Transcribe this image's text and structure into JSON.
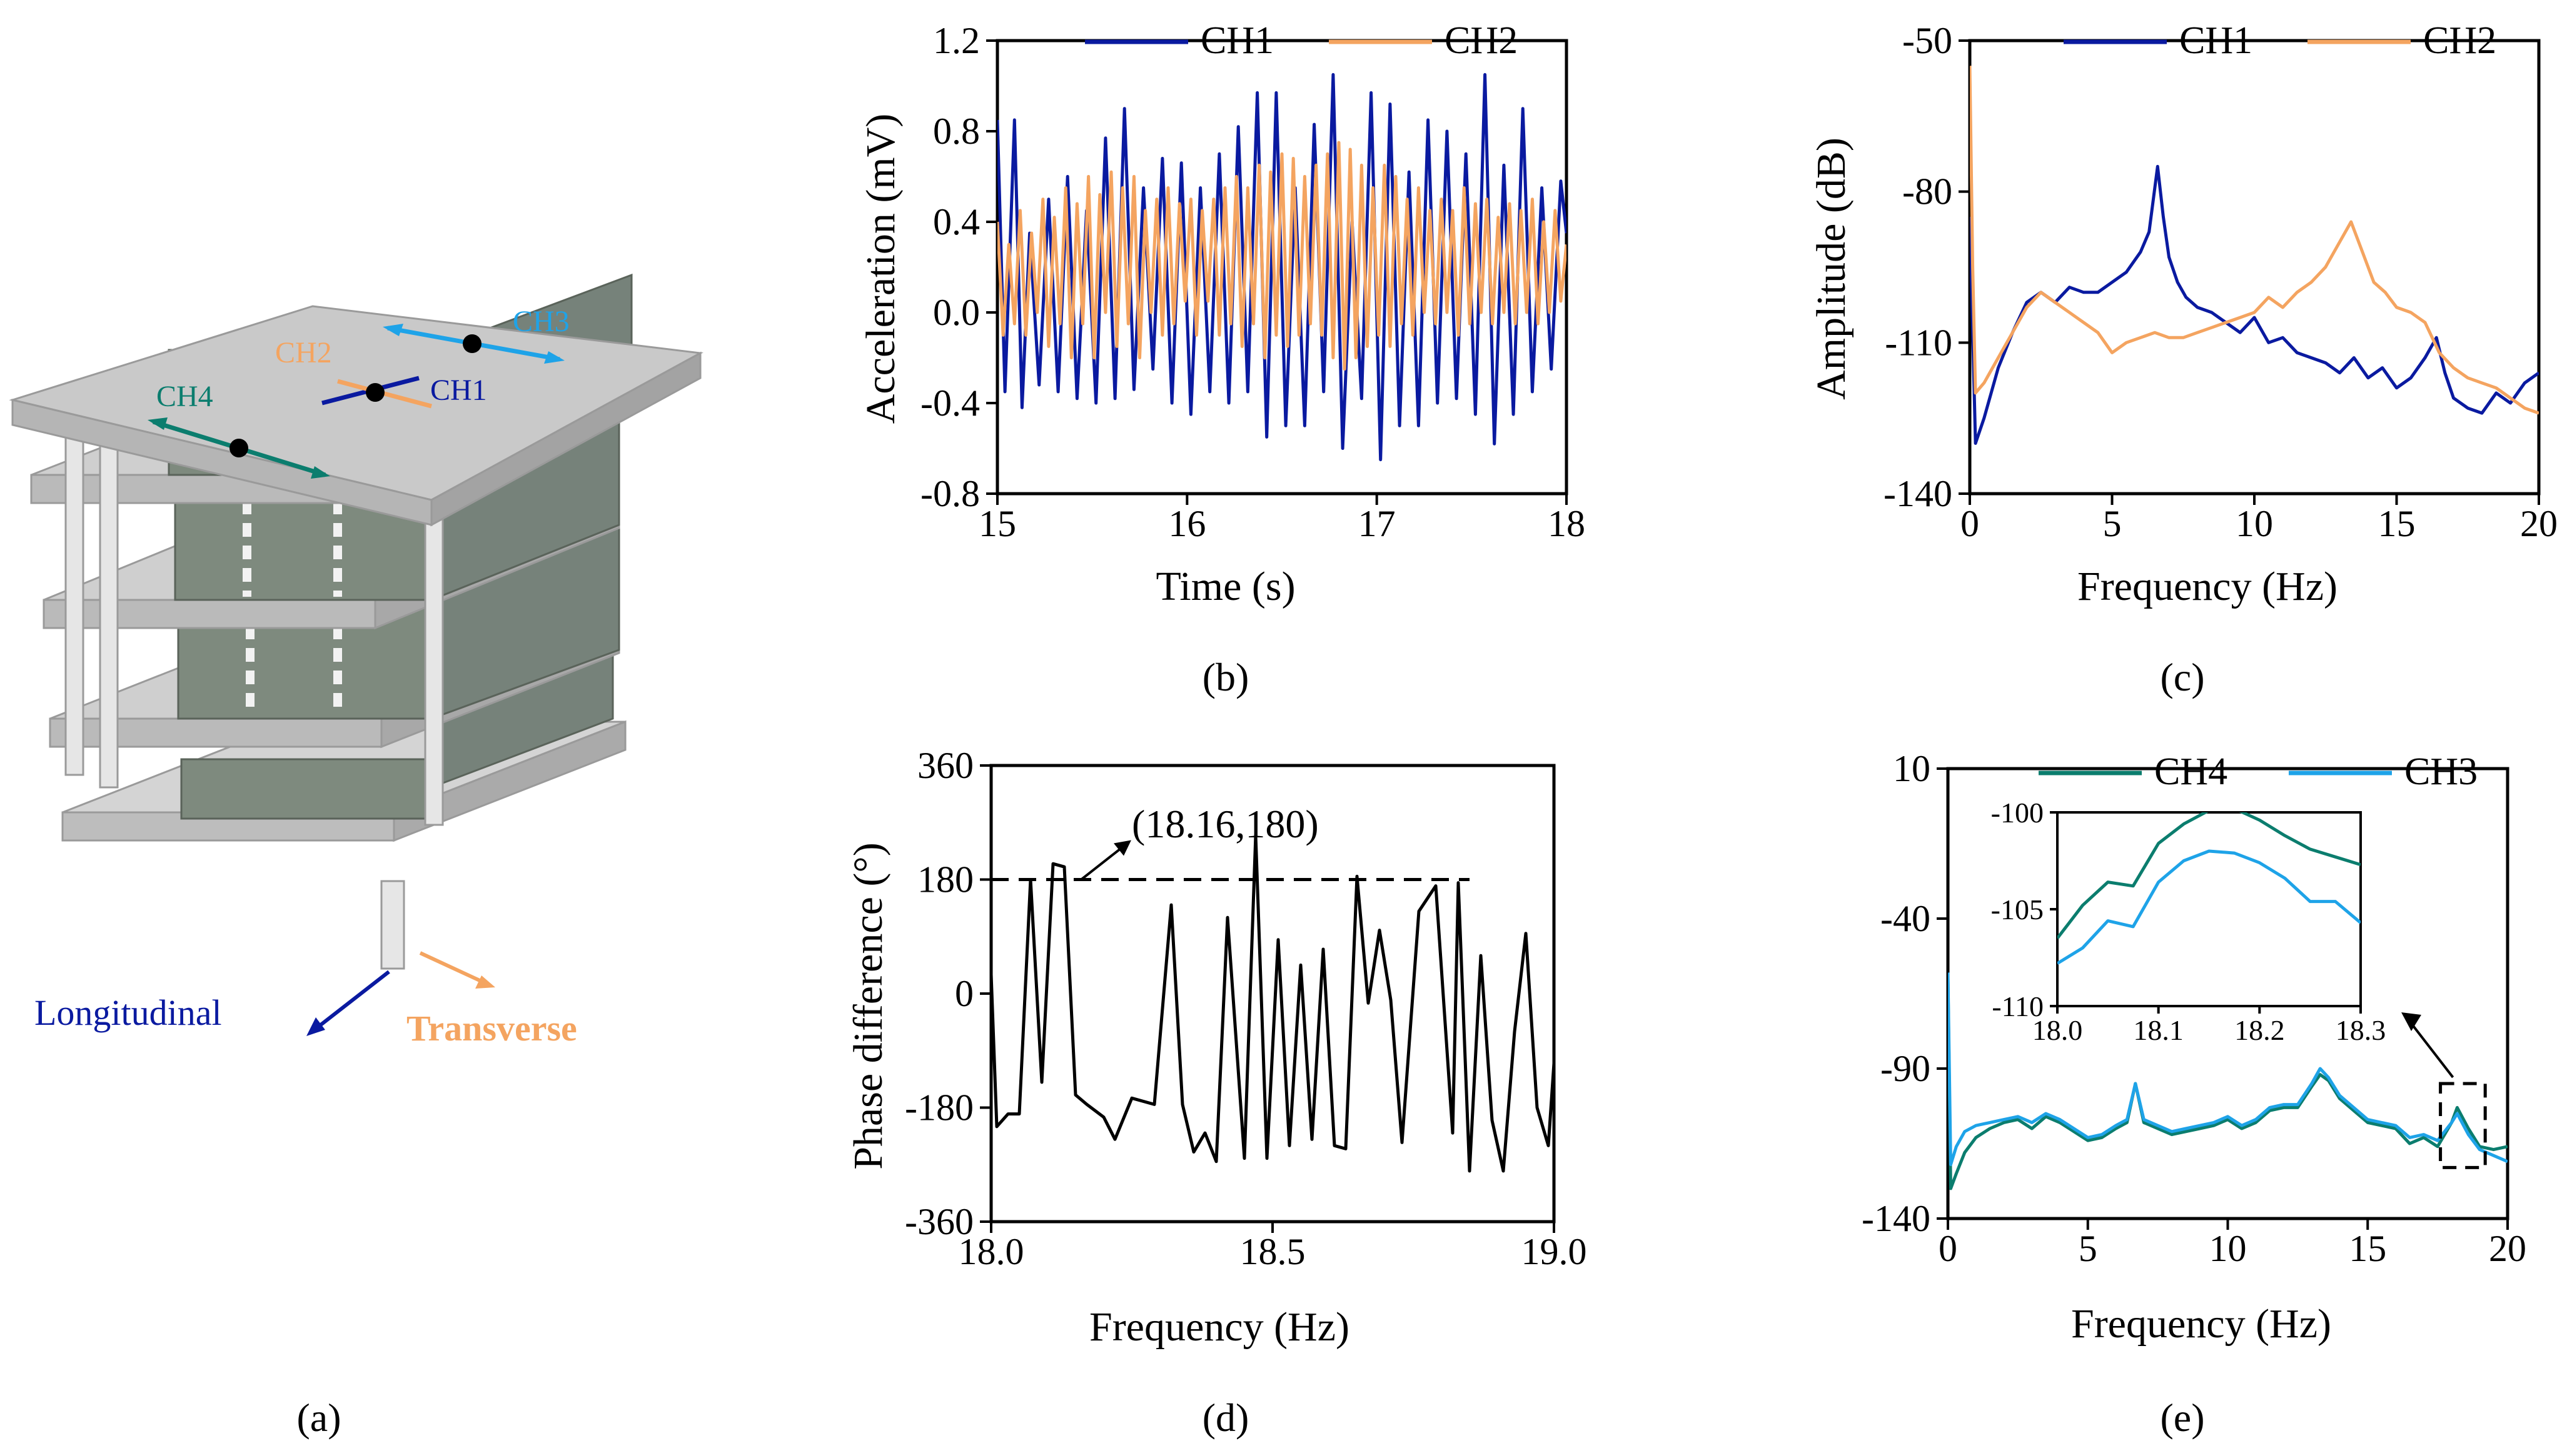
{
  "colors": {
    "ch1": "#0a1aa0",
    "ch2": "#f4a460",
    "ch3": "#1ea3e8",
    "ch4": "#0b7d6e",
    "longitudinal": "#0a1aa0",
    "transverse": "#f4a460",
    "slab": "#c8c8c8",
    "wall": "#7e8a7e"
  },
  "panel_a": {
    "label": "(a)",
    "ch1": "CH1",
    "ch2": "CH2",
    "ch3": "CH3",
    "ch4": "CH4",
    "longitudinal": "Longitudinal",
    "transverse": "Transverse"
  },
  "panel_labels": {
    "b": "(b)",
    "c": "(c)",
    "d": "(d)",
    "e": "(e)"
  },
  "chart_data": [
    {
      "id": "b",
      "type": "line",
      "xlabel": "Time (s)",
      "ylabel": "Acceleration (mV)",
      "xlim": [
        15,
        18
      ],
      "ylim": [
        -0.8,
        1.2
      ],
      "xticks": [
        "15",
        "16",
        "17",
        "18"
      ],
      "yticks": [
        "-0.8",
        "-0.4",
        "0.0",
        "0.4",
        "0.8",
        "1.2"
      ],
      "legend": "top-right",
      "grid": false,
      "series": [
        {
          "name": "CH1",
          "color": "#0a1aa0",
          "x": [
            15.0,
            15.04,
            15.09,
            15.13,
            15.17,
            15.22,
            15.27,
            15.32,
            15.37,
            15.42,
            15.47,
            15.52,
            15.57,
            15.62,
            15.67,
            15.72,
            15.77,
            15.82,
            15.87,
            15.92,
            15.97,
            16.02,
            16.07,
            16.12,
            16.17,
            16.22,
            16.27,
            16.32,
            16.37,
            16.42,
            16.47,
            16.52,
            16.57,
            16.62,
            16.67,
            16.72,
            16.77,
            16.82,
            16.87,
            16.92,
            16.97,
            17.02,
            17.07,
            17.12,
            17.17,
            17.22,
            17.27,
            17.32,
            17.37,
            17.42,
            17.47,
            17.52,
            17.57,
            17.62,
            17.67,
            17.72,
            17.77,
            17.82,
            17.87,
            17.92,
            17.97,
            18.0
          ],
          "y": [
            0.85,
            -0.35,
            0.85,
            -0.42,
            0.35,
            -0.32,
            0.5,
            -0.35,
            0.6,
            -0.38,
            0.45,
            -0.4,
            0.77,
            -0.38,
            0.9,
            -0.34,
            0.55,
            -0.25,
            0.68,
            -0.4,
            0.66,
            -0.45,
            0.55,
            -0.35,
            0.7,
            -0.4,
            0.82,
            -0.35,
            0.97,
            -0.55,
            0.97,
            -0.5,
            0.55,
            -0.5,
            0.83,
            -0.35,
            1.05,
            -0.6,
            0.4,
            -0.38,
            0.97,
            -0.65,
            0.92,
            -0.5,
            0.62,
            -0.5,
            0.85,
            -0.4,
            0.8,
            -0.38,
            0.7,
            -0.45,
            1.05,
            -0.58,
            0.65,
            -0.45,
            0.9,
            -0.35,
            0.55,
            -0.25,
            0.58,
            0.35
          ]
        },
        {
          "name": "CH2",
          "color": "#f4a460",
          "x": [
            15.0,
            15.03,
            15.06,
            15.09,
            15.12,
            15.15,
            15.18,
            15.21,
            15.24,
            15.27,
            15.3,
            15.33,
            15.36,
            15.39,
            15.42,
            15.45,
            15.48,
            15.51,
            15.54,
            15.57,
            15.6,
            15.63,
            15.66,
            15.69,
            15.72,
            15.75,
            15.78,
            15.81,
            15.84,
            15.87,
            15.9,
            15.93,
            15.96,
            15.99,
            16.02,
            16.05,
            16.08,
            16.11,
            16.14,
            16.17,
            16.2,
            16.23,
            16.26,
            16.29,
            16.32,
            16.35,
            16.38,
            16.41,
            16.44,
            16.47,
            16.5,
            16.53,
            16.56,
            16.59,
            16.62,
            16.65,
            16.68,
            16.71,
            16.74,
            16.77,
            16.8,
            16.83,
            16.86,
            16.89,
            16.92,
            16.95,
            16.98,
            17.01,
            17.04,
            17.07,
            17.1,
            17.13,
            17.16,
            17.19,
            17.22,
            17.25,
            17.28,
            17.31,
            17.34,
            17.37,
            17.4,
            17.43,
            17.46,
            17.49,
            17.52,
            17.55,
            17.58,
            17.61,
            17.64,
            17.67,
            17.7,
            17.73,
            17.76,
            17.79,
            17.82,
            17.85,
            17.88,
            17.91,
            17.94,
            17.97,
            18.0
          ],
          "y": [
            0.4,
            -0.1,
            0.3,
            -0.05,
            0.45,
            -0.1,
            0.35,
            0.0,
            0.5,
            -0.15,
            0.42,
            -0.05,
            0.55,
            -0.2,
            0.48,
            -0.05,
            0.6,
            -0.2,
            0.52,
            0.0,
            0.62,
            -0.15,
            0.55,
            -0.05,
            0.6,
            -0.2,
            0.45,
            0.0,
            0.5,
            -0.1,
            0.55,
            -0.05,
            0.48,
            0.05,
            0.5,
            -0.1,
            0.45,
            0.05,
            0.5,
            -0.1,
            0.55,
            -0.05,
            0.6,
            -0.15,
            0.55,
            -0.05,
            0.65,
            -0.2,
            0.62,
            -0.1,
            0.7,
            -0.15,
            0.68,
            -0.1,
            0.6,
            -0.05,
            0.65,
            -0.1,
            0.7,
            -0.2,
            0.75,
            -0.25,
            0.72,
            -0.2,
            0.65,
            -0.15,
            0.55,
            -0.1,
            0.65,
            -0.15,
            0.6,
            -0.05,
            0.5,
            -0.1,
            0.55,
            0.0,
            0.45,
            -0.05,
            0.5,
            0.0,
            0.45,
            -0.1,
            0.55,
            -0.05,
            0.48,
            0.0,
            0.5,
            -0.05,
            0.42,
            0.0,
            0.48,
            -0.05,
            0.45,
            0.0,
            0.5,
            -0.05,
            0.4,
            0.0,
            0.45,
            0.05,
            0.3
          ]
        }
      ]
    },
    {
      "id": "c",
      "type": "line",
      "xlabel": "Frequency (Hz)",
      "ylabel": "Amplitude (dB)",
      "xlim": [
        0,
        20
      ],
      "ylim": [
        -140,
        -50
      ],
      "xticks": [
        "0",
        "5",
        "10",
        "15",
        "20"
      ],
      "yticks": [
        "-140",
        "-110",
        "-80",
        "-50"
      ],
      "legend": "top-right",
      "grid": false,
      "series": [
        {
          "name": "CH1",
          "color": "#0a1aa0",
          "x": [
            0.0,
            0.2,
            0.5,
            1.0,
            1.5,
            2.0,
            2.5,
            3.0,
            3.5,
            4.0,
            4.5,
            5.0,
            5.5,
            6.0,
            6.3,
            6.6,
            6.8,
            7.0,
            7.3,
            7.6,
            8.0,
            8.5,
            9.0,
            9.5,
            10.0,
            10.5,
            11.0,
            11.5,
            12.0,
            12.5,
            13.0,
            13.5,
            14.0,
            14.5,
            15.0,
            15.5,
            16.0,
            16.4,
            16.7,
            17.0,
            17.5,
            18.0,
            18.5,
            19.0,
            19.5,
            20.0
          ],
          "y": [
            -85,
            -130,
            -125,
            -115,
            -108,
            -102,
            -100,
            -102,
            -99,
            -100,
            -100,
            -98,
            -96,
            -92,
            -88,
            -75,
            -85,
            -93,
            -98,
            -101,
            -103,
            -104,
            -106,
            -108,
            -105,
            -110,
            -109,
            -112,
            -113,
            -114,
            -116,
            -113,
            -117,
            -115,
            -119,
            -117,
            -113,
            -109,
            -116,
            -121,
            -123,
            -124,
            -120,
            -122,
            -118,
            -116
          ]
        },
        {
          "name": "CH2",
          "color": "#f4a460",
          "x": [
            0.0,
            0.1,
            0.2,
            0.5,
            1.0,
            1.5,
            2.0,
            2.5,
            3.0,
            3.5,
            4.0,
            4.5,
            5.0,
            5.5,
            6.0,
            6.5,
            7.0,
            7.5,
            8.0,
            8.5,
            9.0,
            9.5,
            10.0,
            10.5,
            11.0,
            11.5,
            12.0,
            12.5,
            13.0,
            13.4,
            13.8,
            14.2,
            14.6,
            15.0,
            15.5,
            16.0,
            16.5,
            17.0,
            17.5,
            18.0,
            18.5,
            19.0,
            19.5,
            20.0
          ],
          "y": [
            -55,
            -95,
            -120,
            -118,
            -113,
            -108,
            -103,
            -100,
            -102,
            -104,
            -106,
            -108,
            -112,
            -110,
            -109,
            -108,
            -109,
            -109,
            -108,
            -107,
            -106,
            -105,
            -104,
            -101,
            -103,
            -100,
            -98,
            -95,
            -90,
            -86,
            -92,
            -98,
            -100,
            -103,
            -104,
            -106,
            -112,
            -115,
            -117,
            -118,
            -119,
            -121,
            -123,
            -124
          ]
        }
      ]
    },
    {
      "id": "d",
      "type": "line",
      "xlabel": "Frequency (Hz)",
      "ylabel": "Phase difference (°)",
      "xlim": [
        18.0,
        19.0
      ],
      "ylim": [
        -360,
        360
      ],
      "xticks": [
        "18.0",
        "18.5",
        "19.0"
      ],
      "yticks": [
        "-360",
        "-180",
        "0",
        "180",
        "360"
      ],
      "grid": false,
      "reference_line": {
        "y": 180,
        "x": [
          18.0,
          18.85
        ],
        "style": "dashed"
      },
      "annotation": {
        "text": "(18.16,180)",
        "x": 18.16,
        "y": 180
      },
      "series": [
        {
          "name": "",
          "color": "#000000",
          "x": [
            18.0,
            18.01,
            18.03,
            18.05,
            18.07,
            18.09,
            18.11,
            18.13,
            18.15,
            18.17,
            18.2,
            18.22,
            18.25,
            18.29,
            18.32,
            18.34,
            18.36,
            18.38,
            18.4,
            18.42,
            18.45,
            18.47,
            18.49,
            18.51,
            18.53,
            18.55,
            18.57,
            18.59,
            18.61,
            18.63,
            18.65,
            18.67,
            18.69,
            18.71,
            18.73,
            18.76,
            18.79,
            18.82,
            18.83,
            18.85,
            18.87,
            18.89,
            18.91,
            18.93,
            18.95,
            18.97,
            18.99,
            19.0
          ],
          "y": [
            30,
            -210,
            -190,
            -190,
            180,
            -140,
            205,
            200,
            -160,
            -175,
            -195,
            -230,
            -165,
            -175,
            140,
            -175,
            -250,
            -220,
            -265,
            120,
            -260,
            250,
            -260,
            85,
            -240,
            45,
            -230,
            70,
            -240,
            -245,
            185,
            -15,
            100,
            -10,
            -235,
            130,
            170,
            -220,
            175,
            -280,
            60,
            -200,
            -280,
            -60,
            95,
            -180,
            -240,
            -110
          ]
        }
      ]
    },
    {
      "id": "e",
      "type": "line",
      "xlabel": "Frequency (Hz)",
      "ylabel": "",
      "xlim": [
        0,
        20
      ],
      "ylim": [
        -140,
        10
      ],
      "xticks": [
        "0",
        "5",
        "10",
        "15",
        "20"
      ],
      "yticks": [
        "-140",
        "-90",
        "-40",
        "10"
      ],
      "legend": "top-right",
      "grid": false,
      "zoom_box": {
        "x": [
          17.6,
          19.2
        ],
        "y": [
          -123,
          -95
        ]
      },
      "series": [
        {
          "name": "CH4",
          "color": "#0b7d6e",
          "x": [
            0.0,
            0.1,
            0.3,
            0.6,
            1.0,
            1.5,
            2.0,
            2.5,
            3.0,
            3.5,
            4.0,
            4.5,
            5.0,
            5.5,
            6.0,
            6.4,
            6.7,
            7.0,
            7.5,
            8.0,
            8.5,
            9.0,
            9.5,
            10.0,
            10.5,
            11.0,
            11.5,
            12.0,
            12.5,
            13.0,
            13.3,
            13.6,
            14.0,
            14.5,
            15.0,
            15.5,
            16.0,
            16.5,
            17.0,
            17.5,
            18.0,
            18.2,
            18.6,
            19.0,
            19.5,
            20.0
          ],
          "y": [
            -60,
            -130,
            -125,
            -118,
            -113,
            -110,
            -108,
            -107,
            -110,
            -106,
            -108,
            -111,
            -114,
            -113,
            -110,
            -108,
            -95,
            -108,
            -110,
            -112,
            -111,
            -110,
            -109,
            -107,
            -110,
            -108,
            -104,
            -103,
            -103,
            -96,
            -92,
            -94,
            -100,
            -104,
            -108,
            -109,
            -110,
            -115,
            -113,
            -116,
            -108,
            -103,
            -110,
            -116,
            -117,
            -116
          ]
        },
        {
          "name": "CH3",
          "color": "#1ea3e8",
          "x": [
            0.0,
            0.1,
            0.3,
            0.6,
            1.0,
            1.5,
            2.0,
            2.5,
            3.0,
            3.5,
            4.0,
            4.5,
            5.0,
            5.5,
            6.0,
            6.4,
            6.7,
            7.0,
            7.5,
            8.0,
            8.5,
            9.0,
            9.5,
            10.0,
            10.5,
            11.0,
            11.5,
            12.0,
            12.5,
            13.0,
            13.3,
            13.6,
            14.0,
            14.5,
            15.0,
            15.5,
            16.0,
            16.5,
            17.0,
            17.5,
            18.0,
            18.2,
            18.6,
            19.0,
            19.5,
            20.0
          ],
          "y": [
            -58,
            -122,
            -116,
            -111,
            -109,
            -108,
            -107,
            -106,
            -108,
            -105,
            -107,
            -110,
            -113,
            -112,
            -109,
            -107,
            -95,
            -107,
            -109,
            -111,
            -110,
            -109,
            -108,
            -106,
            -109,
            -107,
            -103,
            -102,
            -102,
            -95,
            -90,
            -93,
            -99,
            -103,
            -107,
            -108,
            -109,
            -113,
            -112,
            -114,
            -108,
            -105,
            -112,
            -117,
            -119,
            -121
          ]
        }
      ],
      "inset": {
        "xlim": [
          18.0,
          18.3
        ],
        "ylim": [
          -110,
          -100
        ],
        "xticks": [
          "18.0",
          "18.1",
          "18.2",
          "18.3"
        ],
        "yticks": [
          "-110",
          "-105",
          "-100"
        ],
        "series": [
          {
            "name": "CH4",
            "color": "#0b7d6e",
            "x": [
              18.0,
              18.025,
              18.05,
              18.075,
              18.1,
              18.125,
              18.15,
              18.175,
              18.2,
              18.225,
              18.25,
              18.275,
              18.3
            ],
            "y": [
              -106.5,
              -104.8,
              -103.6,
              -103.8,
              -101.6,
              -100.6,
              -99.9,
              -99.8,
              -100.4,
              -101.2,
              -101.9,
              -102.3,
              -102.7
            ]
          },
          {
            "name": "CH3",
            "color": "#1ea3e8",
            "x": [
              18.0,
              18.025,
              18.05,
              18.075,
              18.1,
              18.125,
              18.15,
              18.175,
              18.2,
              18.225,
              18.25,
              18.275,
              18.3
            ],
            "y": [
              -107.8,
              -107.0,
              -105.6,
              -105.9,
              -103.6,
              -102.5,
              -102.0,
              -102.1,
              -102.6,
              -103.4,
              -104.6,
              -104.6,
              -105.7
            ]
          }
        ]
      }
    }
  ]
}
